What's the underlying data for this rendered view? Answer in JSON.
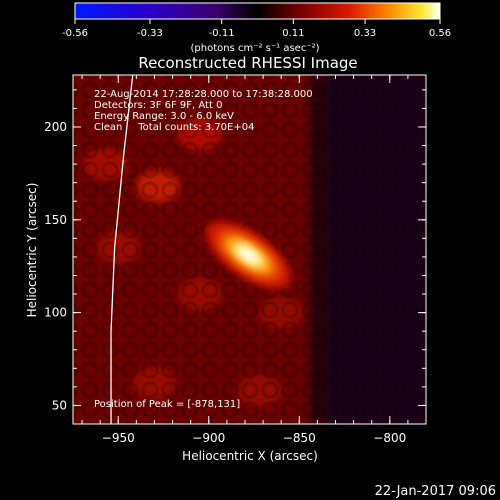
{
  "colorbar": {
    "ticks": [
      "-0.56",
      "-0.33",
      "-0.11",
      "0.11",
      "0.33",
      "0.56"
    ],
    "tick_values": [
      -0.56,
      -0.33,
      -0.11,
      0.11,
      0.33,
      0.56
    ],
    "range": [
      -0.56,
      0.56
    ],
    "units_label": "(photons cm⁻² s⁻¹ asec⁻²)"
  },
  "chart_data": {
    "type": "heatmap",
    "title": "Reconstructed RHESSI Image",
    "xlabel": "Heliocentric X (arcsec)",
    "ylabel": "Heliocentric Y (arcsec)",
    "xlim": [
      -975,
      -780
    ],
    "ylim": [
      40,
      228
    ],
    "x_ticks": [
      -950,
      -900,
      -850,
      -800
    ],
    "x_tick_labels": [
      "−950",
      "−900",
      "−850",
      "−800"
    ],
    "y_ticks": [
      50,
      100,
      150,
      200
    ],
    "y_tick_labels": [
      "50",
      "100",
      "150",
      "200"
    ],
    "annotations": [
      "22-Aug-2014 17:28:28.000 to 17:38:28.000",
      "Detectors: 3F 6F 9F, Att 0",
      "Energy Range: 3.0 - 6.0 keV",
      "Clean     Total counts: 3.70E+04"
    ],
    "peak_label": "Position of Peak = [-878,131]",
    "peak": [
      -878,
      131
    ],
    "peak_value": 0.56,
    "source_axis_angle_deg": 35,
    "secondary_features": [
      {
        "x": -928,
        "y": 168,
        "value": 0.16
      },
      {
        "x": -905,
        "y": 196,
        "value": 0.12
      },
      {
        "x": -957,
        "y": 180,
        "value": 0.1
      },
      {
        "x": -950,
        "y": 135,
        "value": 0.08
      },
      {
        "x": -905,
        "y": 110,
        "value": 0.08
      },
      {
        "x": -860,
        "y": 100,
        "value": 0.07
      },
      {
        "x": -930,
        "y": 62,
        "value": 0.08
      },
      {
        "x": -872,
        "y": 58,
        "value": 0.07
      }
    ],
    "limb_curve": [
      [
        -942,
        228
      ],
      [
        -947,
        185
      ],
      [
        -952,
        135
      ],
      [
        -954,
        90
      ],
      [
        -954,
        40
      ]
    ],
    "colormap": "rainbow-to-hot (blue/purple negative, red-yellow-white positive)"
  },
  "footer": {
    "date": "22-Jan-2017 09:06"
  },
  "colors": {
    "background": "#000000",
    "text": "#ffffff"
  }
}
